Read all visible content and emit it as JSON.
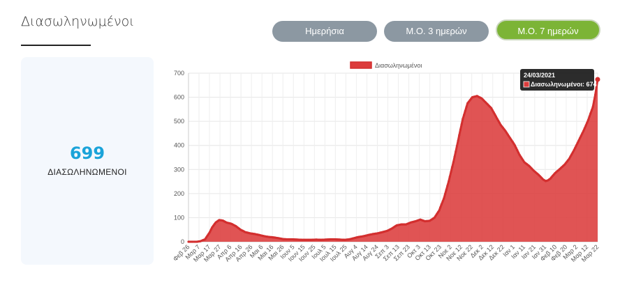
{
  "header": {
    "title": "Διασωληνωμένοι"
  },
  "buttons": [
    {
      "label": "Ημερήσια",
      "active": false
    },
    {
      "label": "Μ.Ο. 3 ημερών",
      "active": false
    },
    {
      "label": "Μ.Ο. 7 ημερών",
      "active": true
    }
  ],
  "summary": {
    "value": "699",
    "label": "ΔΙΑΣΩΛΗΝΩΜΕΝΟΙ"
  },
  "colors": {
    "accent": "#7cb436",
    "series": "#dc3c3c",
    "seriesLine": "#d32f2f",
    "number": "#1aa3d9"
  },
  "chart_data": {
    "type": "area",
    "legend": "Διασωληνωμένοι",
    "legend_position": "top",
    "ylim": [
      0,
      700
    ],
    "y_ticks": [
      0,
      100,
      200,
      300,
      400,
      500,
      600,
      700
    ],
    "x_ticks": [
      "Φεβ 26",
      "Μαρ 7",
      "Μαρ 17",
      "Μαρ 27",
      "Απρ 6",
      "Απρ 16",
      "Απρ 26",
      "Μαι 6",
      "Μαι 16",
      "Μαι 26",
      "Ιουν 5",
      "Ιουν 15",
      "Ιουν 25",
      "Ιουλ 5",
      "Ιουλ 15",
      "Ιουλ 25",
      "Αυγ 4",
      "Αυγ 14",
      "Αυγ 24",
      "Σεπ 3",
      "Σεπ 13",
      "Σεπ 23",
      "Οκτ 3",
      "Οκτ 13",
      "Οκτ 23",
      "Νοε 2",
      "Νοε 12",
      "Νοε 22",
      "Δεκ 2",
      "Δεκ 12",
      "Δεκ 22",
      "Ιαν 1",
      "Ιαν 11",
      "Ιαν 21",
      "Ιαν 31",
      "Φεβ 10",
      "Φεβ 20",
      "Μαρ 2",
      "Μαρ 12",
      "Μαρ 22"
    ],
    "series": [
      {
        "name": "Διασωληνωμένοι",
        "keypoints": [
          [
            0,
            0
          ],
          [
            7,
            0
          ],
          [
            10,
            2
          ],
          [
            14,
            10
          ],
          [
            18,
            40
          ],
          [
            20,
            60
          ],
          [
            23,
            80
          ],
          [
            26,
            90
          ],
          [
            29,
            88
          ],
          [
            32,
            80
          ],
          [
            36,
            75
          ],
          [
            40,
            65
          ],
          [
            44,
            50
          ],
          [
            48,
            40
          ],
          [
            52,
            35
          ],
          [
            56,
            32
          ],
          [
            60,
            28
          ],
          [
            64,
            23
          ],
          [
            68,
            20
          ],
          [
            72,
            18
          ],
          [
            76,
            15
          ],
          [
            80,
            11
          ],
          [
            84,
            10
          ],
          [
            88,
            10
          ],
          [
            92,
            9
          ],
          [
            96,
            8
          ],
          [
            100,
            8
          ],
          [
            104,
            8
          ],
          [
            108,
            9
          ],
          [
            112,
            8
          ],
          [
            116,
            9
          ],
          [
            120,
            10
          ],
          [
            124,
            10
          ],
          [
            128,
            9
          ],
          [
            132,
            8
          ],
          [
            136,
            10
          ],
          [
            140,
            15
          ],
          [
            144,
            20
          ],
          [
            148,
            23
          ],
          [
            152,
            28
          ],
          [
            156,
            32
          ],
          [
            160,
            35
          ],
          [
            164,
            40
          ],
          [
            168,
            45
          ],
          [
            172,
            55
          ],
          [
            176,
            68
          ],
          [
            180,
            72
          ],
          [
            184,
            72
          ],
          [
            188,
            80
          ],
          [
            192,
            85
          ],
          [
            196,
            92
          ],
          [
            200,
            85
          ],
          [
            204,
            87
          ],
          [
            208,
            100
          ],
          [
            212,
            130
          ],
          [
            216,
            180
          ],
          [
            220,
            250
          ],
          [
            224,
            330
          ],
          [
            228,
            420
          ],
          [
            232,
            510
          ],
          [
            236,
            575
          ],
          [
            240,
            600
          ],
          [
            244,
            605
          ],
          [
            248,
            595
          ],
          [
            252,
            575
          ],
          [
            256,
            555
          ],
          [
            260,
            520
          ],
          [
            264,
            485
          ],
          [
            268,
            460
          ],
          [
            272,
            430
          ],
          [
            276,
            400
          ],
          [
            280,
            360
          ],
          [
            284,
            330
          ],
          [
            288,
            315
          ],
          [
            292,
            295
          ],
          [
            296,
            278
          ],
          [
            300,
            258
          ],
          [
            302,
            252
          ],
          [
            304,
            255
          ],
          [
            306,
            262
          ],
          [
            310,
            285
          ],
          [
            314,
            302
          ],
          [
            318,
            320
          ],
          [
            322,
            345
          ],
          [
            326,
            380
          ],
          [
            330,
            420
          ],
          [
            334,
            460
          ],
          [
            338,
            505
          ],
          [
            342,
            560
          ],
          [
            344,
            610
          ],
          [
            346,
            674
          ]
        ]
      }
    ],
    "tooltip": {
      "date": "24/03/2021",
      "label": "Διασωληνωμένοι: 674"
    }
  }
}
